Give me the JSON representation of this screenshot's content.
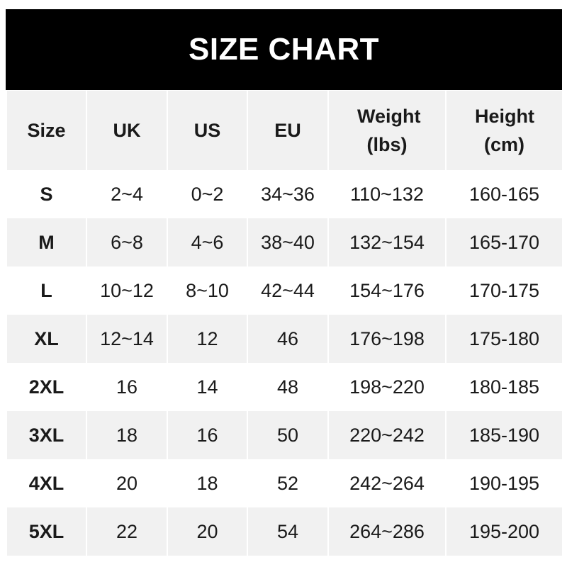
{
  "title": "SIZE CHART",
  "headers": [
    "Size",
    "UK",
    "US",
    "EU",
    "Weight (lbs)",
    "Height (cm)"
  ],
  "rows": [
    [
      "S",
      "2~4",
      "0~2",
      "34~36",
      "110~132",
      "160-165"
    ],
    [
      "M",
      "6~8",
      "4~6",
      "38~40",
      "132~154",
      "165-170"
    ],
    [
      "L",
      "10~12",
      "8~10",
      "42~44",
      "154~176",
      "170-175"
    ],
    [
      "XL",
      "12~14",
      "12",
      "46",
      "176~198",
      "175-180"
    ],
    [
      "2XL",
      "16",
      "14",
      "48",
      "198~220",
      "180-185"
    ],
    [
      "3XL",
      "18",
      "16",
      "50",
      "220~242",
      "185-190"
    ],
    [
      "4XL",
      "20",
      "18",
      "52",
      "242~264",
      "190-195"
    ],
    [
      "5XL",
      "22",
      "20",
      "54",
      "264~286",
      "195-200"
    ]
  ],
  "colors": {
    "title_bg": "#000000",
    "title_text": "#ffffff",
    "stripe": "#f1f1f1"
  }
}
